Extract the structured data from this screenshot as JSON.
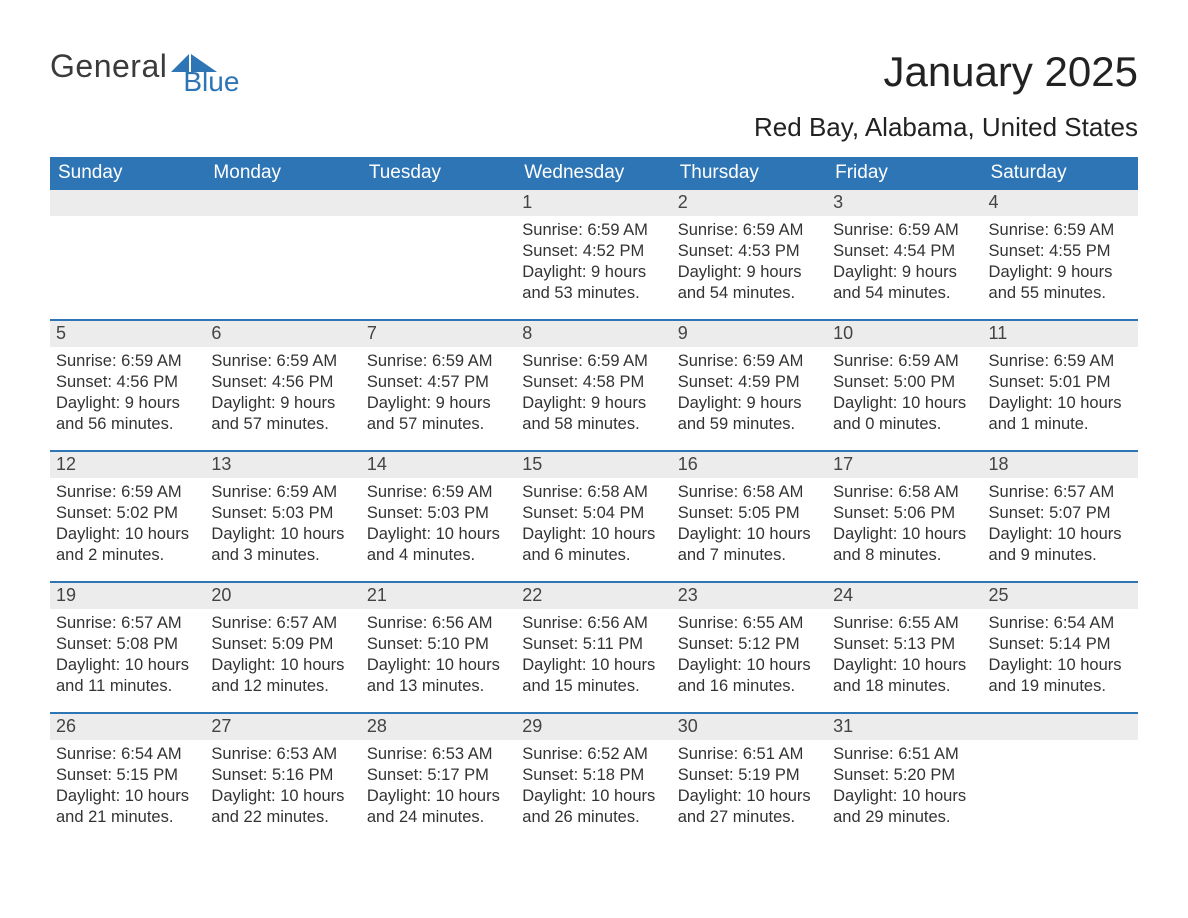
{
  "logo": {
    "left": "General",
    "right": "Blue",
    "accent_color": "#2e75b6"
  },
  "title": "January 2025",
  "location": "Red Bay, Alabama, United States",
  "colors": {
    "header_bg": "#2e75b6",
    "header_text": "#ffffff",
    "daynum_bg": "#ececec",
    "body_text": "#333333",
    "rule": "#2e75b6"
  },
  "weekdays": [
    "Sunday",
    "Monday",
    "Tuesday",
    "Wednesday",
    "Thursday",
    "Friday",
    "Saturday"
  ],
  "weeks": [
    [
      null,
      null,
      null,
      {
        "n": "1",
        "sr": "Sunrise: 6:59 AM",
        "ss": "Sunset: 4:52 PM",
        "d1": "Daylight: 9 hours",
        "d2": "and 53 minutes."
      },
      {
        "n": "2",
        "sr": "Sunrise: 6:59 AM",
        "ss": "Sunset: 4:53 PM",
        "d1": "Daylight: 9 hours",
        "d2": "and 54 minutes."
      },
      {
        "n": "3",
        "sr": "Sunrise: 6:59 AM",
        "ss": "Sunset: 4:54 PM",
        "d1": "Daylight: 9 hours",
        "d2": "and 54 minutes."
      },
      {
        "n": "4",
        "sr": "Sunrise: 6:59 AM",
        "ss": "Sunset: 4:55 PM",
        "d1": "Daylight: 9 hours",
        "d2": "and 55 minutes."
      }
    ],
    [
      {
        "n": "5",
        "sr": "Sunrise: 6:59 AM",
        "ss": "Sunset: 4:56 PM",
        "d1": "Daylight: 9 hours",
        "d2": "and 56 minutes."
      },
      {
        "n": "6",
        "sr": "Sunrise: 6:59 AM",
        "ss": "Sunset: 4:56 PM",
        "d1": "Daylight: 9 hours",
        "d2": "and 57 minutes."
      },
      {
        "n": "7",
        "sr": "Sunrise: 6:59 AM",
        "ss": "Sunset: 4:57 PM",
        "d1": "Daylight: 9 hours",
        "d2": "and 57 minutes."
      },
      {
        "n": "8",
        "sr": "Sunrise: 6:59 AM",
        "ss": "Sunset: 4:58 PM",
        "d1": "Daylight: 9 hours",
        "d2": "and 58 minutes."
      },
      {
        "n": "9",
        "sr": "Sunrise: 6:59 AM",
        "ss": "Sunset: 4:59 PM",
        "d1": "Daylight: 9 hours",
        "d2": "and 59 minutes."
      },
      {
        "n": "10",
        "sr": "Sunrise: 6:59 AM",
        "ss": "Sunset: 5:00 PM",
        "d1": "Daylight: 10 hours",
        "d2": "and 0 minutes."
      },
      {
        "n": "11",
        "sr": "Sunrise: 6:59 AM",
        "ss": "Sunset: 5:01 PM",
        "d1": "Daylight: 10 hours",
        "d2": "and 1 minute."
      }
    ],
    [
      {
        "n": "12",
        "sr": "Sunrise: 6:59 AM",
        "ss": "Sunset: 5:02 PM",
        "d1": "Daylight: 10 hours",
        "d2": "and 2 minutes."
      },
      {
        "n": "13",
        "sr": "Sunrise: 6:59 AM",
        "ss": "Sunset: 5:03 PM",
        "d1": "Daylight: 10 hours",
        "d2": "and 3 minutes."
      },
      {
        "n": "14",
        "sr": "Sunrise: 6:59 AM",
        "ss": "Sunset: 5:03 PM",
        "d1": "Daylight: 10 hours",
        "d2": "and 4 minutes."
      },
      {
        "n": "15",
        "sr": "Sunrise: 6:58 AM",
        "ss": "Sunset: 5:04 PM",
        "d1": "Daylight: 10 hours",
        "d2": "and 6 minutes."
      },
      {
        "n": "16",
        "sr": "Sunrise: 6:58 AM",
        "ss": "Sunset: 5:05 PM",
        "d1": "Daylight: 10 hours",
        "d2": "and 7 minutes."
      },
      {
        "n": "17",
        "sr": "Sunrise: 6:58 AM",
        "ss": "Sunset: 5:06 PM",
        "d1": "Daylight: 10 hours",
        "d2": "and 8 minutes."
      },
      {
        "n": "18",
        "sr": "Sunrise: 6:57 AM",
        "ss": "Sunset: 5:07 PM",
        "d1": "Daylight: 10 hours",
        "d2": "and 9 minutes."
      }
    ],
    [
      {
        "n": "19",
        "sr": "Sunrise: 6:57 AM",
        "ss": "Sunset: 5:08 PM",
        "d1": "Daylight: 10 hours",
        "d2": "and 11 minutes."
      },
      {
        "n": "20",
        "sr": "Sunrise: 6:57 AM",
        "ss": "Sunset: 5:09 PM",
        "d1": "Daylight: 10 hours",
        "d2": "and 12 minutes."
      },
      {
        "n": "21",
        "sr": "Sunrise: 6:56 AM",
        "ss": "Sunset: 5:10 PM",
        "d1": "Daylight: 10 hours",
        "d2": "and 13 minutes."
      },
      {
        "n": "22",
        "sr": "Sunrise: 6:56 AM",
        "ss": "Sunset: 5:11 PM",
        "d1": "Daylight: 10 hours",
        "d2": "and 15 minutes."
      },
      {
        "n": "23",
        "sr": "Sunrise: 6:55 AM",
        "ss": "Sunset: 5:12 PM",
        "d1": "Daylight: 10 hours",
        "d2": "and 16 minutes."
      },
      {
        "n": "24",
        "sr": "Sunrise: 6:55 AM",
        "ss": "Sunset: 5:13 PM",
        "d1": "Daylight: 10 hours",
        "d2": "and 18 minutes."
      },
      {
        "n": "25",
        "sr": "Sunrise: 6:54 AM",
        "ss": "Sunset: 5:14 PM",
        "d1": "Daylight: 10 hours",
        "d2": "and 19 minutes."
      }
    ],
    [
      {
        "n": "26",
        "sr": "Sunrise: 6:54 AM",
        "ss": "Sunset: 5:15 PM",
        "d1": "Daylight: 10 hours",
        "d2": "and 21 minutes."
      },
      {
        "n": "27",
        "sr": "Sunrise: 6:53 AM",
        "ss": "Sunset: 5:16 PM",
        "d1": "Daylight: 10 hours",
        "d2": "and 22 minutes."
      },
      {
        "n": "28",
        "sr": "Sunrise: 6:53 AM",
        "ss": "Sunset: 5:17 PM",
        "d1": "Daylight: 10 hours",
        "d2": "and 24 minutes."
      },
      {
        "n": "29",
        "sr": "Sunrise: 6:52 AM",
        "ss": "Sunset: 5:18 PM",
        "d1": "Daylight: 10 hours",
        "d2": "and 26 minutes."
      },
      {
        "n": "30",
        "sr": "Sunrise: 6:51 AM",
        "ss": "Sunset: 5:19 PM",
        "d1": "Daylight: 10 hours",
        "d2": "and 27 minutes."
      },
      {
        "n": "31",
        "sr": "Sunrise: 6:51 AM",
        "ss": "Sunset: 5:20 PM",
        "d1": "Daylight: 10 hours",
        "d2": "and 29 minutes."
      },
      null
    ]
  ]
}
